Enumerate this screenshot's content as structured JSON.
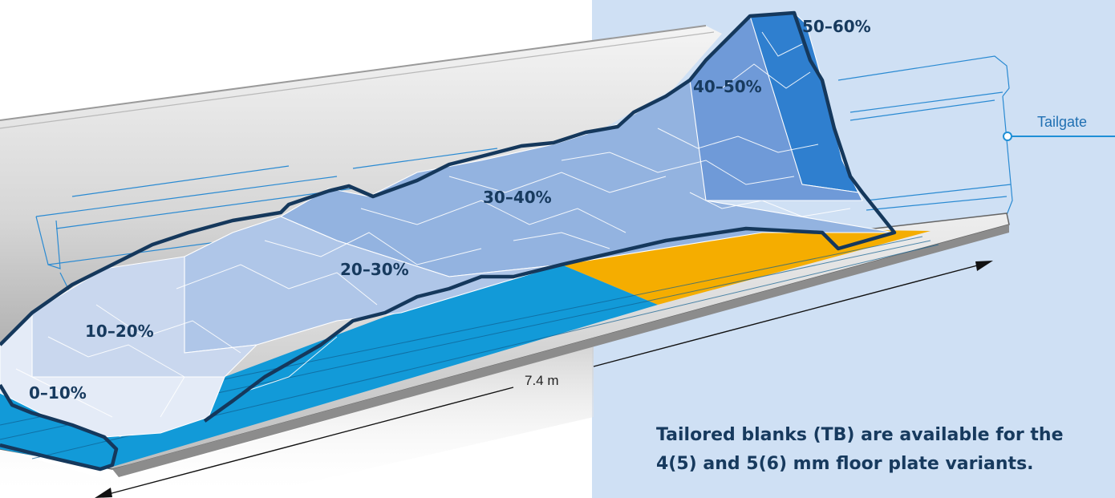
{
  "zones": [
    {
      "label": "0–10%",
      "color": "#e4ebf7"
    },
    {
      "label": "10–20%",
      "color": "#c9d7ee"
    },
    {
      "label": "20–30%",
      "color": "#afc6e8"
    },
    {
      "label": "30–40%",
      "color": "#93b3e0"
    },
    {
      "label": "40–50%",
      "color": "#6f9ad8"
    },
    {
      "label": "50–60%",
      "color": "#2f7fcf"
    }
  ],
  "callout": {
    "tailgate": "Tailgate"
  },
  "dimension": {
    "length": "7.4 m"
  },
  "caption": {
    "line1": "Tailored blanks (TB) are available for the",
    "line2": "4(5) and 5(6) mm floor plate variants."
  },
  "colors": {
    "panel": "#cfe0f4",
    "floor_blue": "#129ad8",
    "floor_orange": "#f5ad00",
    "outline": "#15385c",
    "accent": "#1f8fd6"
  }
}
